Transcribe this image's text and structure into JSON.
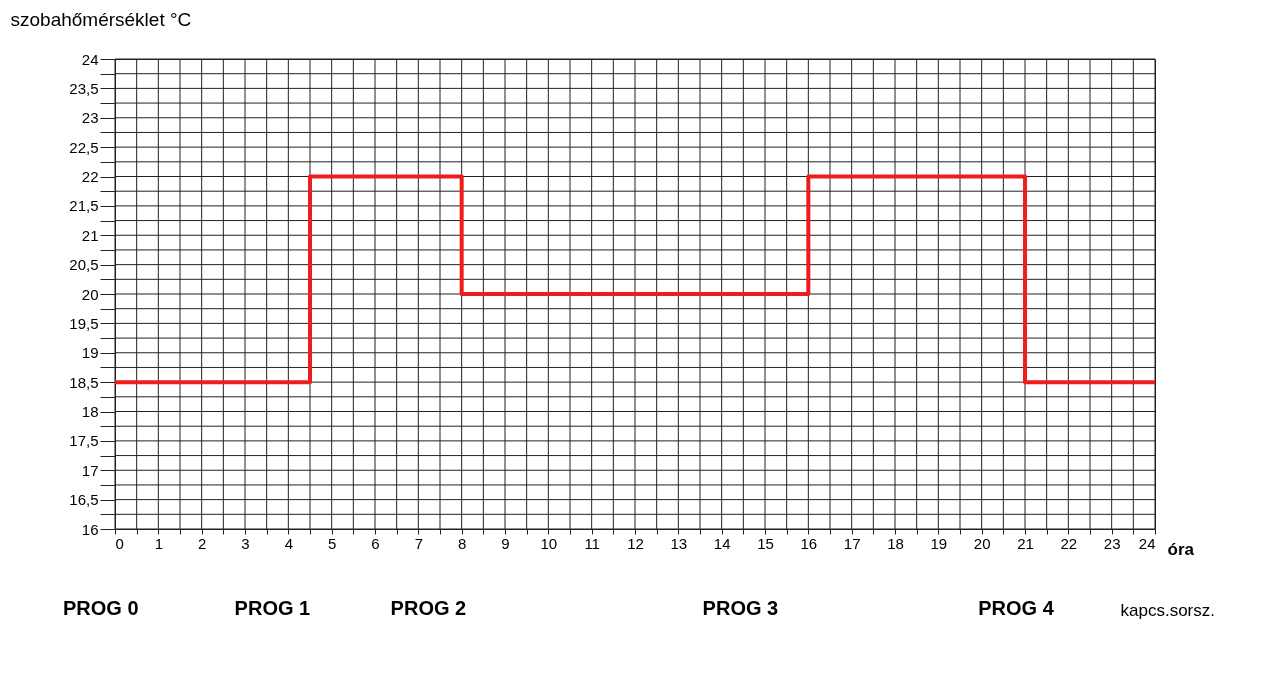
{
  "chart_data": {
    "type": "step",
    "xlabel": "óra",
    "ylabel": "szobahőmérséklet °C",
    "x": [
      0,
      4.5,
      8,
      16,
      21,
      24
    ],
    "series": [
      {
        "color": "#ee1c1c",
        "values": [
          18.5,
          22,
          20,
          22,
          18.5,
          18.5
        ]
      }
    ],
    "xlim": [
      0,
      24
    ],
    "xticks": [
      0,
      {
        "value": 0.5,
        "label": null
      },
      1,
      {
        "value": 1.5,
        "label": null
      },
      2,
      {
        "value": 2.5,
        "label": null
      },
      3,
      {
        "value": 3.5,
        "label": null
      },
      4,
      {
        "value": 4.5,
        "label": null
      },
      5,
      {
        "value": 5.5,
        "label": null
      },
      6,
      {
        "value": 6.5,
        "label": null
      },
      7,
      {
        "value": 7.5,
        "label": null
      },
      8,
      {
        "value": 8.5,
        "label": null
      },
      9,
      {
        "value": 9.5,
        "label": null
      },
      10,
      {
        "value": 10.5,
        "label": null
      },
      11,
      {
        "value": 11.5,
        "label": null
      },
      12,
      {
        "value": 12.5,
        "label": null
      },
      13,
      {
        "value": 13.5,
        "label": null
      },
      14,
      {
        "value": 14.5,
        "label": null
      },
      15,
      {
        "value": 15.5,
        "label": null
      },
      16,
      {
        "value": 16.5,
        "label": null
      },
      17,
      {
        "value": 17.5,
        "label": null
      },
      18,
      {
        "value": 18.5,
        "label": null
      },
      19,
      {
        "value": 19.5,
        "label": null
      },
      20,
      {
        "value": 20.5,
        "label": null
      },
      21,
      {
        "value": 21.5,
        "label": null
      },
      22,
      {
        "value": 22.5,
        "label": null
      },
      23,
      {
        "value": 23.5,
        "label": null
      },
      24
    ],
    "ylim": [
      16,
      24
    ],
    "yticks": [
      16,
      {
        "value": 16.25,
        "label": null
      },
      {
        "value": 16.5,
        "label": "16,5"
      },
      {
        "value": 16.75,
        "label": null
      },
      17,
      {
        "value": 17.25,
        "label": null
      },
      {
        "value": 17.5,
        "label": "17,5"
      },
      {
        "value": 17.75,
        "label": null
      },
      18,
      {
        "value": 18.25,
        "label": null
      },
      {
        "value": 18.5,
        "label": "18,5"
      },
      {
        "value": 18.75,
        "label": null
      },
      19,
      {
        "value": 19.25,
        "label": null
      },
      {
        "value": 19.5,
        "label": "19,5"
      },
      {
        "value": 19.75,
        "label": null
      },
      20,
      {
        "value": 20.25,
        "label": null
      },
      {
        "value": 20.5,
        "label": "20,5"
      },
      {
        "value": 20.75,
        "label": null
      },
      21,
      {
        "value": 21.25,
        "label": null
      },
      {
        "value": 21.5,
        "label": "21,5"
      },
      {
        "value": 21.75,
        "label": null
      },
      22,
      {
        "value": 22.25,
        "label": null
      },
      {
        "value": 22.5,
        "label": "22,5"
      },
      {
        "value": 22.75,
        "label": null
      },
      23,
      {
        "value": 23.25,
        "label": null
      },
      {
        "value": 23.5,
        "label": "23,5"
      },
      {
        "value": 23.75,
        "label": null
      },
      24
    ],
    "grid": true,
    "marker": "none",
    "line_style": "solid",
    "annotations": [
      "PROG 0",
      "PROG 1",
      "PROG 2",
      "PROG 3",
      "PROG 4",
      "kapcs.sorsz."
    ]
  }
}
